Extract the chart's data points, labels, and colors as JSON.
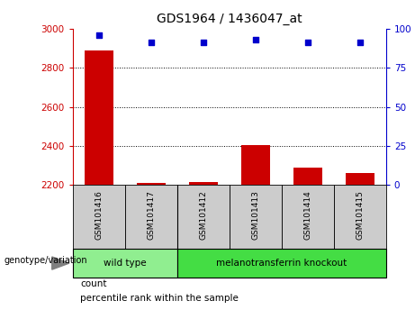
{
  "title": "GDS1964 / 1436047_at",
  "samples": [
    "GSM101416",
    "GSM101417",
    "GSM101412",
    "GSM101413",
    "GSM101414",
    "GSM101415"
  ],
  "counts": [
    2890,
    2210,
    2215,
    2405,
    2290,
    2260
  ],
  "percentiles": [
    96,
    91,
    91,
    93,
    91,
    91
  ],
  "ylim_left": [
    2200,
    3000
  ],
  "ylim_right": [
    0,
    100
  ],
  "yticks_left": [
    2200,
    2400,
    2600,
    2800,
    3000
  ],
  "yticks_right": [
    0,
    25,
    50,
    75,
    100
  ],
  "bar_color": "#cc0000",
  "dot_color": "#0000cc",
  "bar_bottom": 2200,
  "groups": [
    {
      "label": "wild type",
      "indices": [
        0,
        1
      ],
      "color": "#90ee90"
    },
    {
      "label": "melanotransferrin knockout",
      "indices": [
        2,
        3,
        4,
        5
      ],
      "color": "#44dd44"
    }
  ],
  "xlabel": "genotype/variation",
  "legend_count_label": "count",
  "legend_pct_label": "percentile rank within the sample",
  "tick_label_color_left": "#cc0000",
  "tick_label_color_right": "#0000cc",
  "bg_color": "#ffffff",
  "sample_box_color": "#cccccc"
}
